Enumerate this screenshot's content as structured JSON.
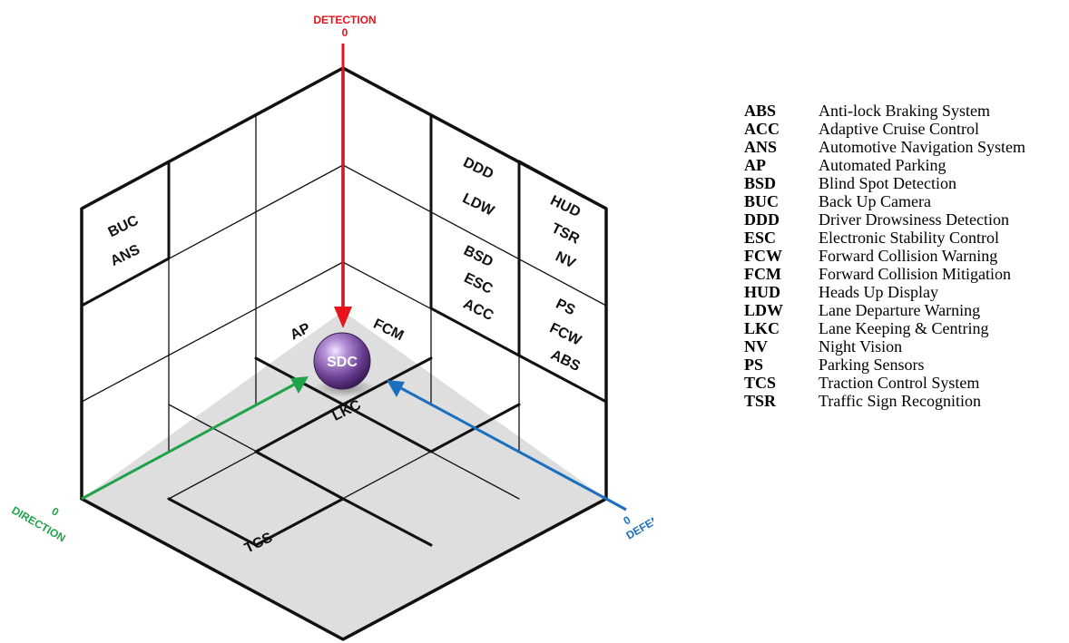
{
  "axes": {
    "detection": {
      "label": "DETECTION",
      "origin": "0",
      "color": "#e8141b"
    },
    "direction": {
      "label": "DIRECTION",
      "origin": "0",
      "color": "#1fa24a"
    },
    "defence": {
      "label": "DEFENCE",
      "origin": "0",
      "color": "#1a6fbf"
    }
  },
  "center": {
    "label": "SDC",
    "sphere_color": "#7a4fa0"
  },
  "left_wall": {
    "lines": [
      "BUC",
      "ANS"
    ]
  },
  "floor": {
    "front_left": "AP",
    "front_right": "FCM",
    "center": "LKC",
    "back_left": "TCS"
  },
  "right_wall": {
    "top_left": [
      "DDD",
      "LDW"
    ],
    "top_right": [
      "HUD",
      "TSR",
      "NV"
    ],
    "mid_left": [
      "BSD",
      "ESC",
      "ACC"
    ],
    "mid_right": [
      "PS",
      "FCW",
      "ABS"
    ]
  },
  "glossary": [
    {
      "abbr": "ABS",
      "definition": "Anti-lock Braking System"
    },
    {
      "abbr": "ACC",
      "definition": "Adaptive Cruise Control"
    },
    {
      "abbr": "ANS",
      "definition": "Automotive Navigation System"
    },
    {
      "abbr": "AP",
      "definition": "Automated Parking"
    },
    {
      "abbr": "BSD",
      "definition": "Blind Spot Detection"
    },
    {
      "abbr": "BUC",
      "definition": "Back Up Camera"
    },
    {
      "abbr": "DDD",
      "definition": "Driver Drowsiness Detection"
    },
    {
      "abbr": "ESC",
      "definition": "Electronic Stability Control"
    },
    {
      "abbr": "FCW",
      "definition": "Forward Collision Warning"
    },
    {
      "abbr": "FCM",
      "definition": "Forward Collision Mitigation"
    },
    {
      "abbr": "HUD",
      "definition": "Heads Up Display"
    },
    {
      "abbr": "LDW",
      "definition": "Lane Departure Warning"
    },
    {
      "abbr": "LKC",
      "definition": "Lane Keeping & Centring"
    },
    {
      "abbr": "NV",
      "definition": "Night Vision"
    },
    {
      "abbr": "PS",
      "definition": "Parking Sensors"
    },
    {
      "abbr": "TCS",
      "definition": "Traction Control System"
    },
    {
      "abbr": "TSR",
      "definition": "Traffic Sign Recognition"
    }
  ]
}
